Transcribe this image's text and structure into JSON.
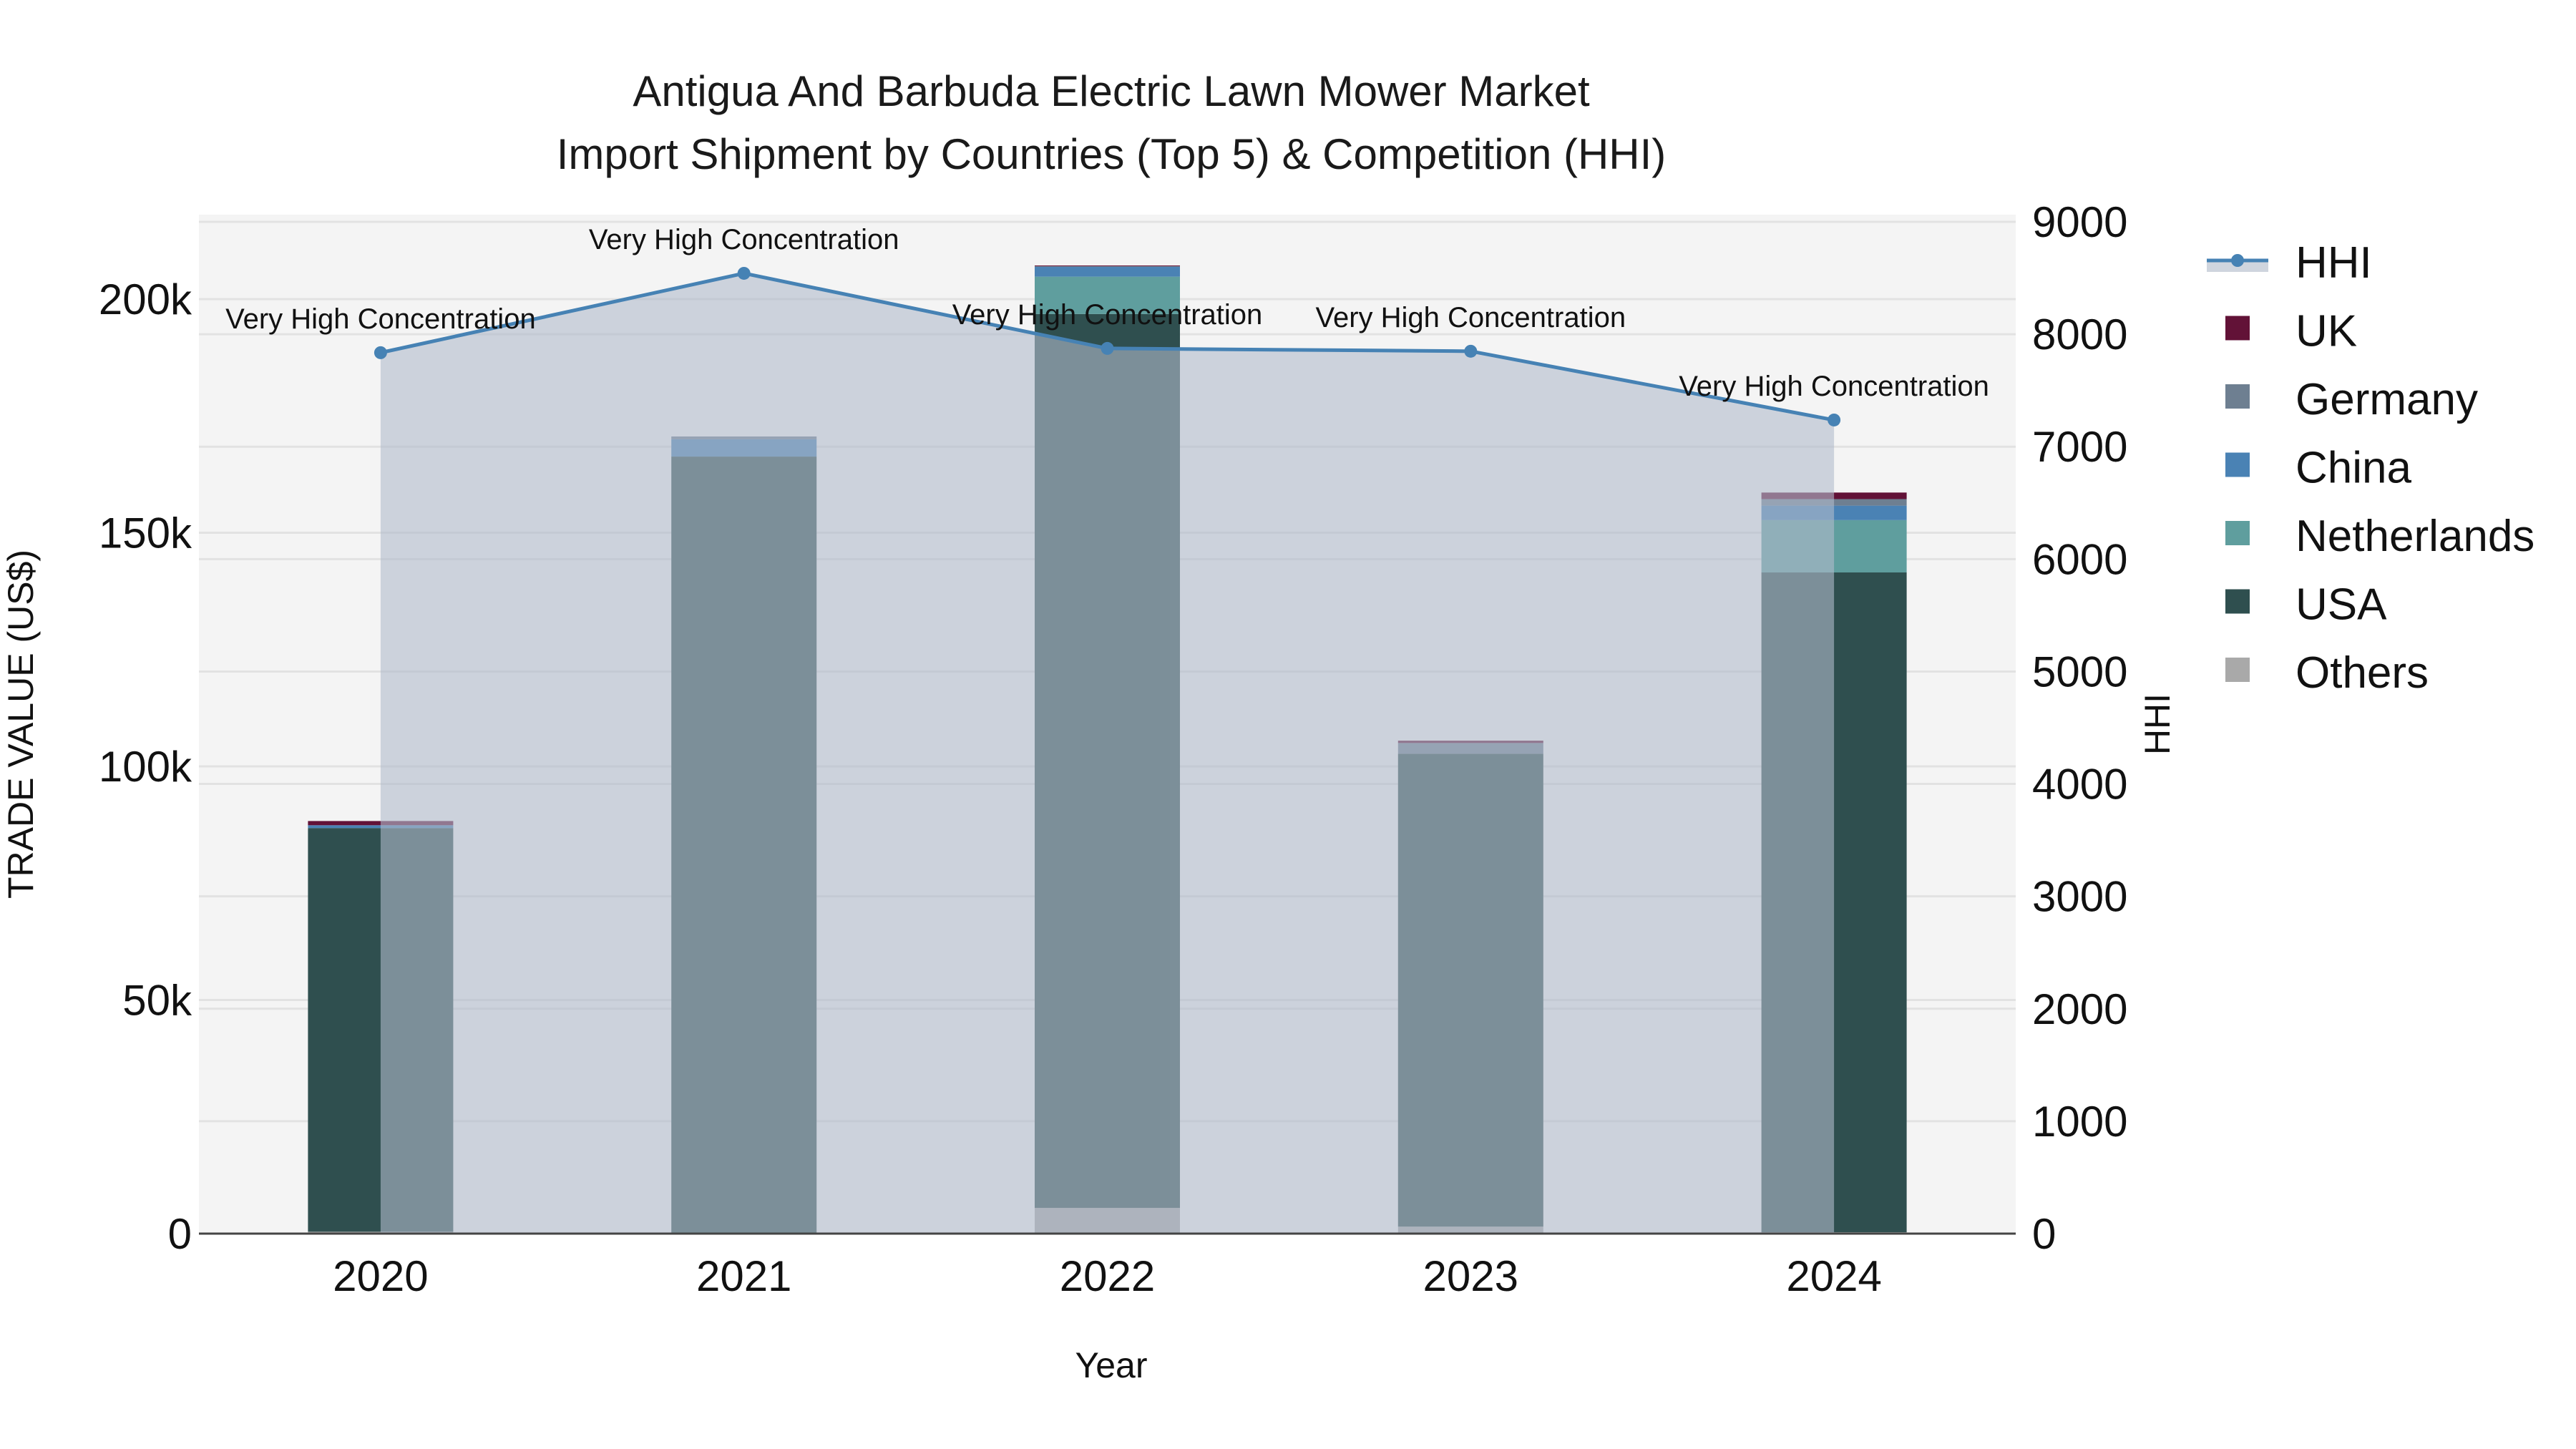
{
  "title": {
    "line1": "Antigua And Barbuda Electric Lawn Mower Market",
    "line2": "Import Shipment by Countries (Top 5) & Competition (HHI)"
  },
  "axes": {
    "x_title": "Year",
    "y_left_title": "TRADE VALUE (US$)",
    "y_right_title": "HHI",
    "y_left_ticks": [
      {
        "value": 0,
        "label": "0"
      },
      {
        "value": 50000,
        "label": "50k"
      },
      {
        "value": 100000,
        "label": "100k"
      },
      {
        "value": 150000,
        "label": "150k"
      },
      {
        "value": 200000,
        "label": "200k"
      }
    ],
    "y_right_ticks": [
      {
        "value": 0,
        "label": "0"
      },
      {
        "value": 1000,
        "label": "1000"
      },
      {
        "value": 2000,
        "label": "2000"
      },
      {
        "value": 3000,
        "label": "3000"
      },
      {
        "value": 4000,
        "label": "4000"
      },
      {
        "value": 5000,
        "label": "5000"
      },
      {
        "value": 6000,
        "label": "6000"
      },
      {
        "value": 7000,
        "label": "7000"
      },
      {
        "value": 8000,
        "label": "8000"
      },
      {
        "value": 9000,
        "label": "9000"
      }
    ]
  },
  "legend": {
    "items": [
      {
        "label": "HHI",
        "type": "line",
        "color": "#4682b4"
      },
      {
        "label": "UK",
        "type": "box",
        "color": "#621237"
      },
      {
        "label": "Germany",
        "type": "box",
        "color": "#6e7f91"
      },
      {
        "label": "China",
        "type": "box",
        "color": "#4a82b4"
      },
      {
        "label": "Netherlands",
        "type": "box",
        "color": "#5f9e9e"
      },
      {
        "label": "USA",
        "type": "box",
        "color": "#2f4f4f"
      },
      {
        "label": "Others",
        "type": "box",
        "color": "#a9a9a9"
      }
    ]
  },
  "colors": {
    "plot_bg": "#f4f4f4",
    "grid": "#e2e2e2",
    "hhi_line": "#4682b4",
    "hhi_fill": "rgba(176,186,204,0.6)",
    "axis_line": "#444444"
  },
  "chart_data": {
    "type": "bar",
    "stacked": true,
    "title": "Antigua And Barbuda Electric Lawn Mower Market Import Shipment by Countries (Top 5) & Competition (HHI)",
    "xlabel": "Year",
    "ylabel": "TRADE VALUE (US$)",
    "y2label": "HHI",
    "ylim": [
      0,
      218000
    ],
    "y2lim": [
      0,
      9070
    ],
    "grid": true,
    "legend_position": "right",
    "categories": [
      "2020",
      "2021",
      "2022",
      "2023",
      "2024"
    ],
    "series": [
      {
        "name": "Others",
        "color": "#a9a9a9",
        "values": [
          400,
          0,
          5500,
          1500,
          300
        ]
      },
      {
        "name": "USA",
        "color": "#2f4f4f",
        "values": [
          86400,
          166300,
          191300,
          101200,
          141200
        ]
      },
      {
        "name": "Netherlands",
        "color": "#5f9e9e",
        "values": [
          0,
          0,
          8000,
          0,
          11200
        ]
      },
      {
        "name": "China",
        "color": "#4a82b4",
        "values": [
          600,
          3700,
          2100,
          0,
          3100
        ]
      },
      {
        "name": "Germany",
        "color": "#6e7f91",
        "values": [
          0,
          600,
          150,
          2300,
          1400
        ]
      },
      {
        "name": "UK",
        "color": "#621237",
        "values": [
          900,
          0,
          150,
          500,
          1400
        ]
      }
    ],
    "line_series": {
      "name": "HHI",
      "axis": "right",
      "color": "#4682b4",
      "values": [
        7836,
        8542,
        7874,
        7849,
        7237
      ],
      "annotations": [
        "Very High Concentration",
        "Very High Concentration",
        "Very High Concentration",
        "Very High Concentration",
        "Very High Concentration"
      ]
    }
  }
}
